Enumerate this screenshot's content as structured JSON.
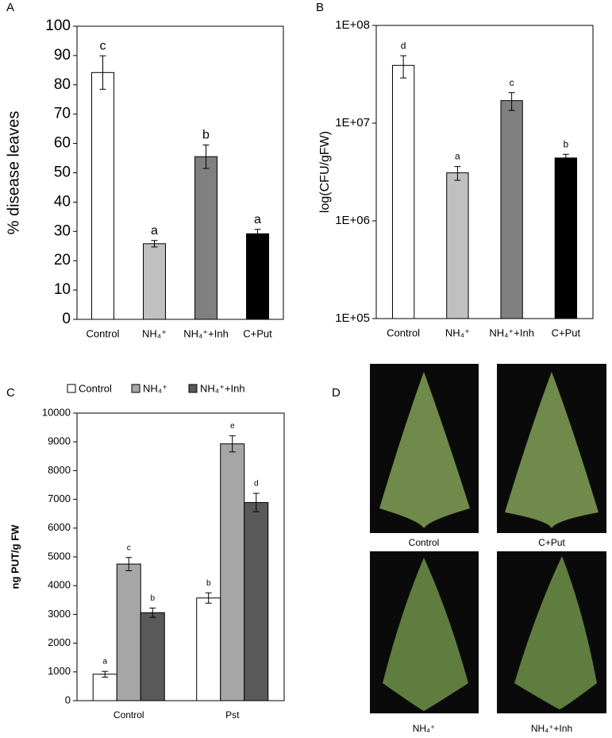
{
  "chart_data": [
    {
      "panel": "A",
      "type": "bar",
      "ylabel": "% disease leaves",
      "categories": [
        "Control",
        "NH₄⁺",
        "NH₄⁺+Inh",
        "C+Put"
      ],
      "values": [
        84.2,
        25.8,
        55.5,
        29.2
      ],
      "errors": [
        5.7,
        1.1,
        4,
        1.5
      ],
      "letters": [
        "c",
        "a",
        "b",
        "a"
      ],
      "colors": [
        "#ffffff",
        "#c0c0c0",
        "#808080",
        "#000000"
      ],
      "ylim": [
        0,
        100
      ],
      "yticks": [
        0,
        10,
        20,
        30,
        40,
        50,
        60,
        70,
        80,
        90,
        100
      ]
    },
    {
      "panel": "B",
      "type": "bar",
      "ylabel": "log(CFU/gFW)",
      "log_scale": true,
      "categories": [
        "Control",
        "NH₄⁺",
        "NH₄⁺+Inh",
        "C+Put"
      ],
      "values": [
        39000000,
        3100000,
        17000000,
        4400000
      ],
      "errors": [
        10000000,
        500000,
        3500000,
        400000
      ],
      "letters": [
        "d",
        "a",
        "c",
        "b"
      ],
      "colors": [
        "#ffffff",
        "#c0c0c0",
        "#808080",
        "#000000"
      ],
      "ylim": [
        100000,
        100000000
      ],
      "yticks": [
        {
          "value": 100000,
          "label": "1E+05"
        },
        {
          "value": 1000000,
          "label": "1E+06"
        },
        {
          "value": 10000000,
          "label": "1E+07"
        },
        {
          "value": 100000000,
          "label": "1E+08"
        }
      ]
    },
    {
      "panel": "C",
      "type": "bar",
      "ylabel": "ng PUT/g FW",
      "categories": [
        "Control",
        "Pst"
      ],
      "series": [
        {
          "name": "Control",
          "color": "#ffffff",
          "values": [
            920,
            3570
          ],
          "errors": [
            100,
            180
          ],
          "letters": [
            "a",
            "b"
          ]
        },
        {
          "name": "NH₄⁺",
          "color": "#a6a6a6",
          "values": [
            4750,
            8930
          ],
          "errors": [
            230,
            280
          ],
          "letters": [
            "c",
            "e"
          ]
        },
        {
          "name": "NH₄⁺+Inh",
          "color": "#595959",
          "values": [
            3060,
            6890
          ],
          "errors": [
            160,
            320
          ],
          "letters": [
            "b",
            "d"
          ]
        }
      ],
      "ylim": [
        0,
        10000
      ],
      "yticks": [
        0,
        1000,
        2000,
        3000,
        4000,
        5000,
        6000,
        7000,
        8000,
        9000,
        10000
      ]
    }
  ],
  "photos": {
    "panel": "D",
    "captions": [
      "Control",
      "C+Put",
      "NH₄⁺",
      "NH₄⁺+Inh"
    ]
  }
}
